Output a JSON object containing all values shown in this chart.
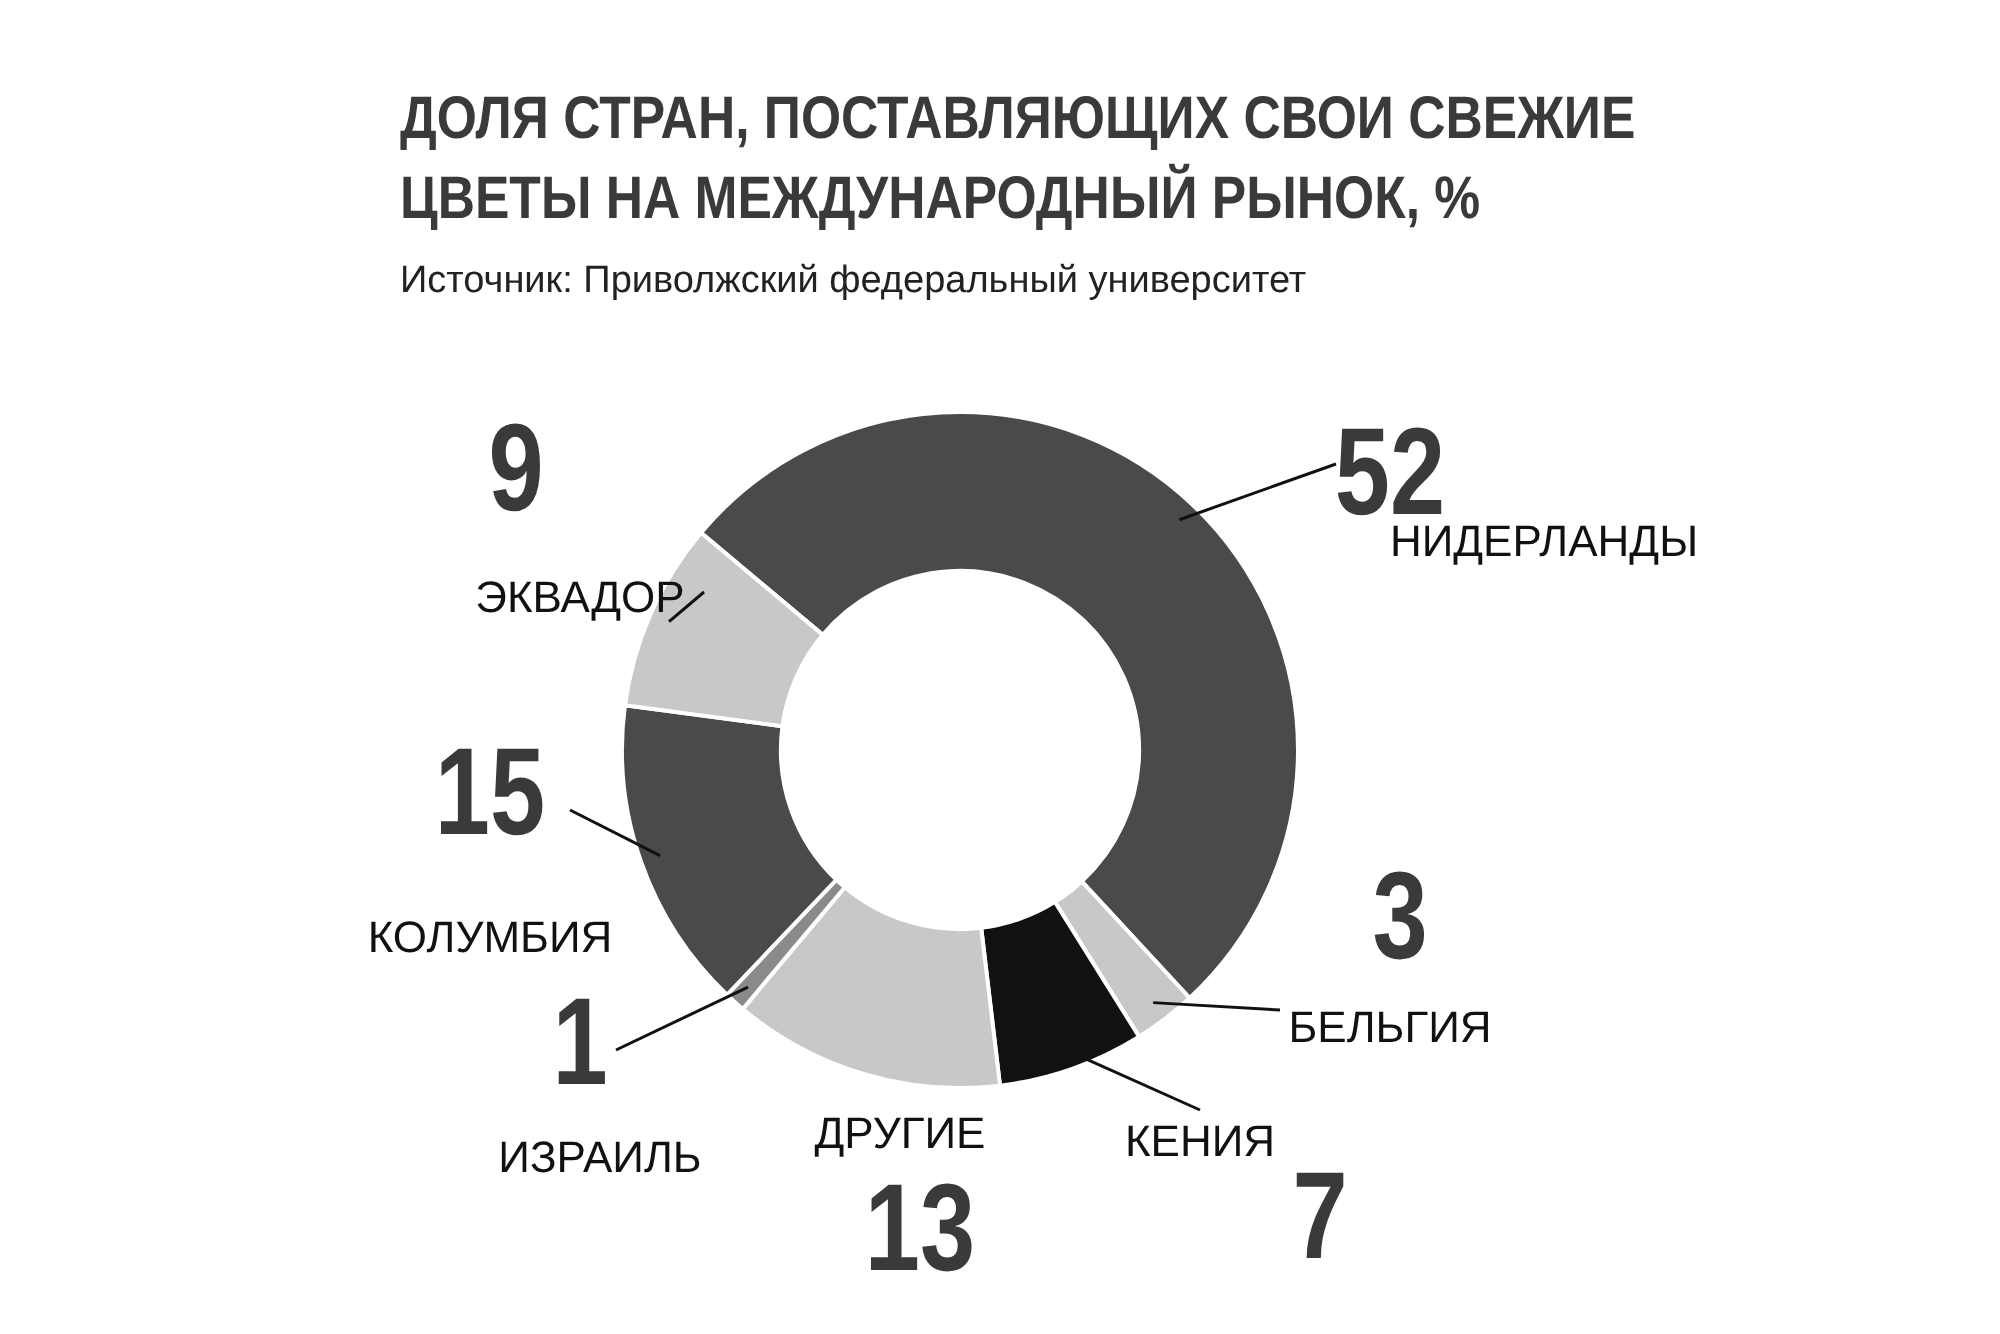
{
  "chart_data": {
    "type": "donut",
    "title": "ДОЛЯ СТРАН, ПОСТАВЛЯЮЩИХ СВОИ СВЕЖИЕ ЦВЕТЫ НА МЕЖДУНАРОДНЫЙ РЫНОК, %",
    "annotations": [
      "Источник: Приволжский федеральный университет"
    ],
    "categories": [
      "НИДЕРЛАНДЫ",
      "БЕЛЬГИЯ",
      "КЕНИЯ",
      "ДРУГИЕ",
      "ИЗРАИЛЬ",
      "КОЛУМБИЯ",
      "ЭКВАДОР"
    ],
    "values": [
      52,
      3,
      7,
      13,
      1,
      15,
      9
    ],
    "colors": [
      "#4a4a4a",
      "#c8c8c8",
      "#111111",
      "#c8c8c8",
      "#8a8a8a",
      "#4a4a4a",
      "#c8c8c8"
    ],
    "data_labels": true,
    "legend": false
  }
}
